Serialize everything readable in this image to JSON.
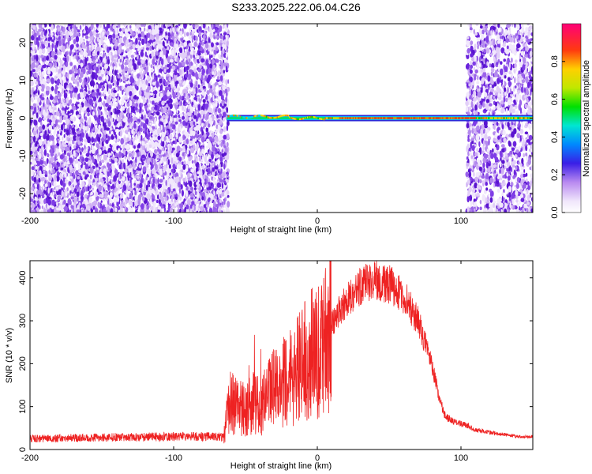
{
  "title": "S233.2025.222.06.04.C26",
  "colors": {
    "snr_line": "#ee2222",
    "spectrogram_noise": "#8844ee",
    "background": "#ffffff"
  },
  "chart_data": [
    {
      "type": "heatmap",
      "title": "S233.2025.222.06.04.C26",
      "xlabel": "Height of straight line (km)",
      "ylabel": "Frequency (Hz)",
      "xlim": [
        -200,
        150
      ],
      "ylim": [
        -25,
        25
      ],
      "xticks": [
        -200,
        -100,
        0,
        100
      ],
      "yticks": [
        -20,
        -10,
        0,
        10,
        20
      ],
      "colorbar": {
        "label": "Normalized spectral amplitude",
        "range": [
          0.0,
          1.0
        ],
        "ticks": [
          0.0,
          0.2,
          0.4,
          0.6,
          0.8
        ],
        "colormap": "rainbow-white"
      },
      "features": {
        "noise_regions_km": [
          [
            -200,
            -62
          ],
          [
            104,
            150
          ]
        ],
        "signal_start_km": -63,
        "signal_frequency_hz": 0,
        "peak_amplitude_region_km": [
          15,
          110
        ]
      }
    },
    {
      "type": "line",
      "xlabel": "Height of straight line (km)",
      "ylabel": "SNR (10 * v/v)",
      "xlim": [
        -200,
        150
      ],
      "ylim": [
        0,
        440
      ],
      "xticks": [
        -200,
        -100,
        0,
        100
      ],
      "yticks": [
        0,
        100,
        200,
        300,
        400
      ],
      "grid": false,
      "envelope": {
        "x": [
          -200,
          -150,
          -100,
          -70,
          -65,
          -63,
          -60,
          -55,
          -50,
          -45,
          -40,
          -35,
          -30,
          -25,
          -20,
          -15,
          -10,
          -5,
          0,
          5,
          10,
          15,
          20,
          25,
          30,
          35,
          40,
          45,
          50,
          55,
          60,
          65,
          70,
          75,
          80,
          85,
          88,
          90,
          95,
          100,
          105,
          110,
          120,
          130,
          140,
          150
        ],
        "y": [
          25,
          28,
          30,
          30,
          28,
          80,
          120,
          100,
          90,
          110,
          100,
          120,
          140,
          160,
          160,
          180,
          200,
          220,
          230,
          260,
          290,
          320,
          345,
          365,
          380,
          390,
          395,
          390,
          385,
          375,
          355,
          330,
          300,
          250,
          190,
          120,
          85,
          75,
          65,
          60,
          55,
          45,
          40,
          35,
          30,
          30
        ]
      }
    }
  ]
}
